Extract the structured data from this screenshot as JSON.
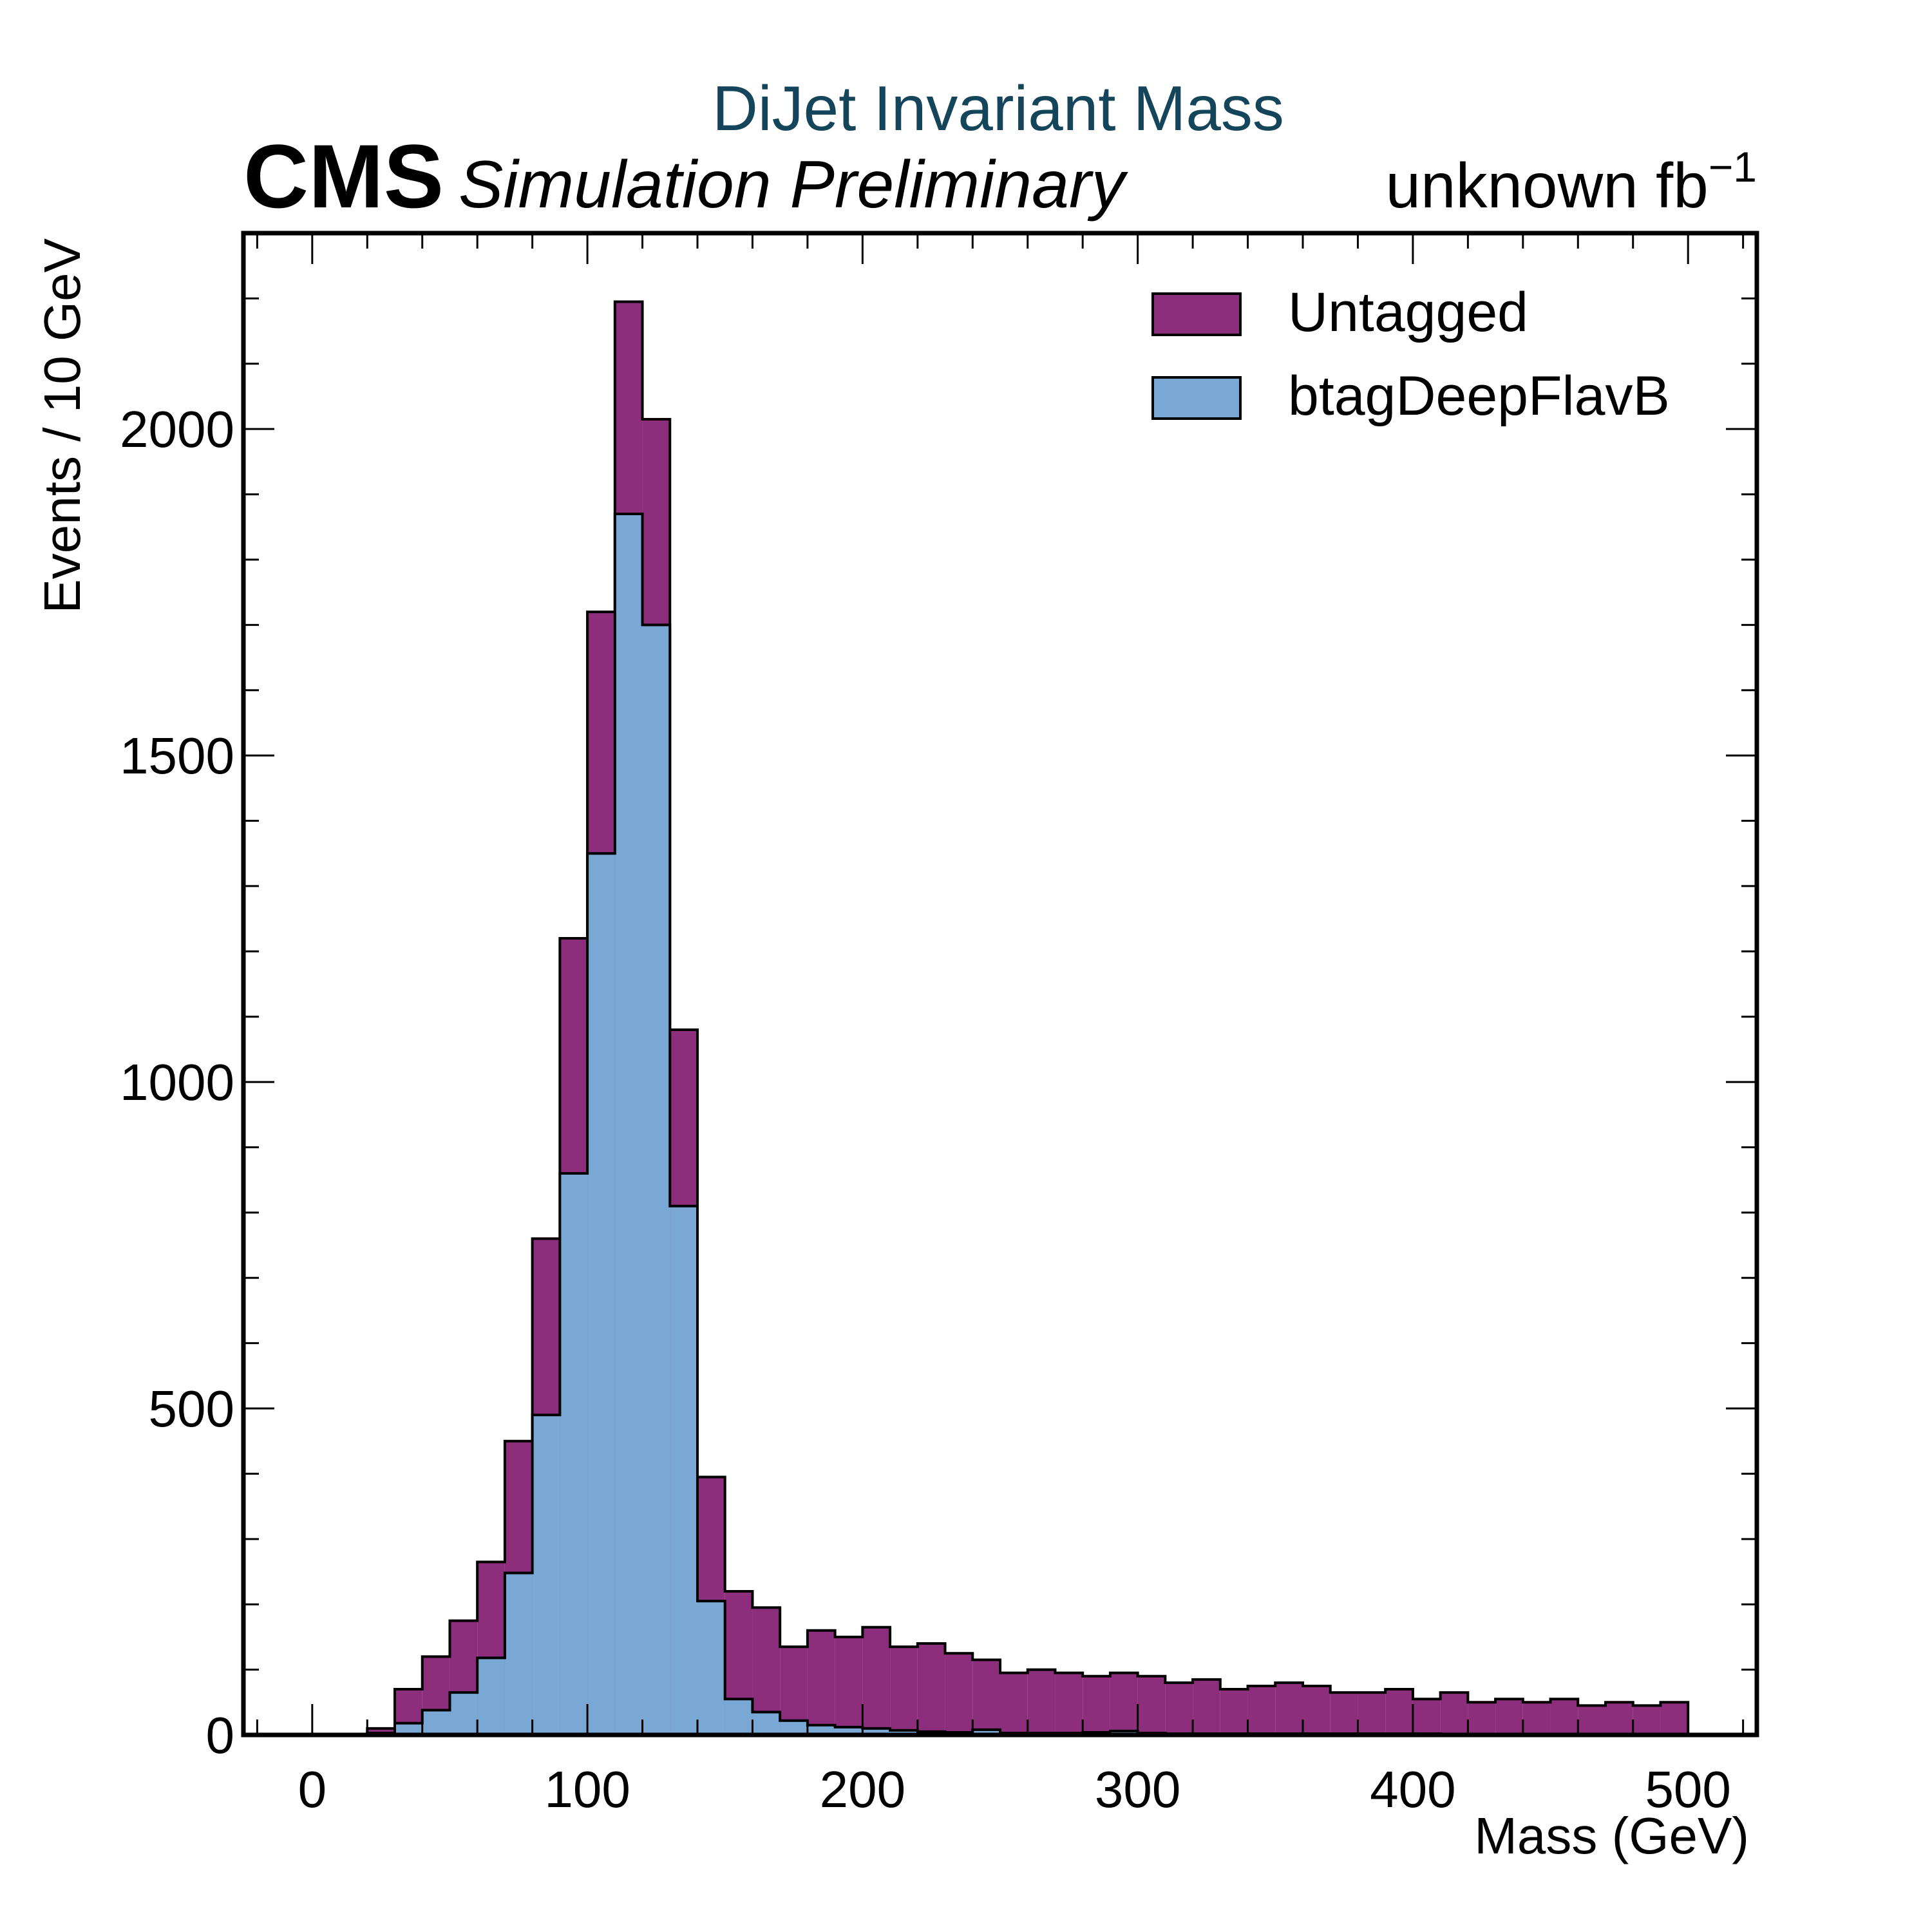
{
  "chart_data": {
    "type": "bar",
    "title": "DiJet Invariant Mass",
    "experiment_label": "CMS",
    "status_label": "Simulation Preliminary",
    "lumi_label": "unknown fb",
    "lumi_exponent": "−1",
    "xlabel": "Mass (GeV)",
    "ylabel": "Events / 10 GeV",
    "xlim": [
      -25,
      525
    ],
    "ylim": [
      0,
      2300
    ],
    "x_ticks": [
      0,
      100,
      200,
      300,
      400,
      500
    ],
    "y_ticks": [
      0,
      500,
      1000,
      1500,
      2000
    ],
    "grid": false,
    "legend_position": "top-right",
    "bin_width": 10,
    "bin_edges_start": 0,
    "series": [
      {
        "name": "Untagged",
        "color": "#8c2e7c",
        "values": [
          0,
          0,
          10,
          70,
          120,
          175,
          265,
          450,
          760,
          1220,
          1720,
          2195,
          2015,
          1080,
          395,
          220,
          195,
          135,
          160,
          150,
          165,
          135,
          140,
          125,
          115,
          95,
          100,
          95,
          90,
          95,
          90,
          80,
          85,
          70,
          75,
          80,
          75,
          65,
          65,
          70,
          55,
          65,
          50,
          55,
          50,
          55,
          45,
          50,
          45,
          50
        ]
      },
      {
        "name": "btagDeepFlavB",
        "color": "#7aa8d4",
        "values": [
          0,
          0,
          3,
          18,
          38,
          65,
          118,
          248,
          490,
          860,
          1350,
          1870,
          1700,
          810,
          205,
          55,
          35,
          22,
          15,
          12,
          10,
          7,
          5,
          4,
          8,
          3,
          3,
          3,
          4,
          6,
          3,
          2,
          2,
          2,
          2,
          2,
          2,
          2,
          2,
          2,
          2,
          1,
          1,
          1,
          1,
          1,
          1,
          1,
          1,
          1
        ]
      }
    ]
  }
}
